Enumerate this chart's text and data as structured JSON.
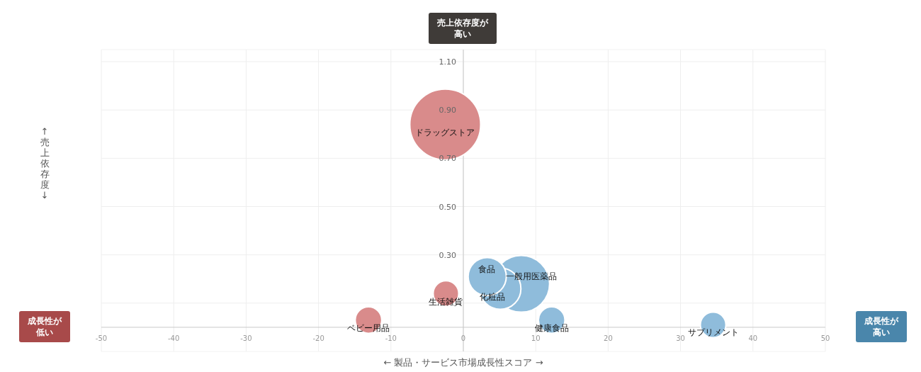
{
  "chart_data": {
    "type": "bubble",
    "xlabel": "← 製品・サービス市場成長性スコア →",
    "xlim": [
      -50,
      50
    ],
    "xticks": [
      -50,
      -40,
      -30,
      -20,
      -10,
      0,
      10,
      20,
      30,
      40,
      50
    ],
    "ylim": [
      -0.1,
      1.15
    ],
    "yticks": [
      {
        "value": 0.1,
        "label": null
      },
      {
        "value": 0.3,
        "label": "0.30"
      },
      {
        "value": 0.5,
        "label": "0.50"
      },
      {
        "value": 0.7,
        "label": "0.70"
      },
      {
        "value": 0.9,
        "label": "0.90"
      },
      {
        "value": 1.1,
        "label": "1.10"
      }
    ],
    "grid": true,
    "series": [
      {
        "x": [
          -2.5,
          -2.4,
          -13.1,
          8.0,
          3.3,
          5.1,
          12.2,
          34.5
        ],
        "values": [
          0.84,
          0.14,
          0.03,
          0.18,
          0.21,
          0.16,
          0.03,
          0.01
        ],
        "sizes": [
          1,
          0.13,
          0.14,
          0.64,
          0.29,
          0.34,
          0.14,
          0.13
        ],
        "colors": [
          "#d98b8b",
          "#d98b8b",
          "#d98b8b",
          "#8fbcdb",
          "#8fbcdb",
          "#8fbcdb",
          "#8fbcdb",
          "#8fbcdb"
        ]
      }
    ],
    "annotations": [
      {
        "text": "ドラッグストア",
        "x": -2.5,
        "y": 0.84
      },
      {
        "text": "生活雑貨",
        "x": -2.4,
        "y": 0.14
      },
      {
        "text": "ベビー用品",
        "x": -13.1,
        "y": 0.03
      },
      {
        "text": "一般用医薬品",
        "x": 8.0,
        "y": 0.18
      },
      {
        "text": "食品",
        "x": 3.3,
        "y": 0.21
      },
      {
        "text": "化粧品",
        "x": 5.1,
        "y": 0.16
      },
      {
        "text": "健康食品",
        "x": 12.2,
        "y": 0.03
      },
      {
        "text": "サプリメント",
        "x": 34.5,
        "y": 0.01
      },
      "売上依存度が高い",
      "成長性が低い",
      "成長性が高い",
      "↑売上依存度↓"
    ]
  }
}
